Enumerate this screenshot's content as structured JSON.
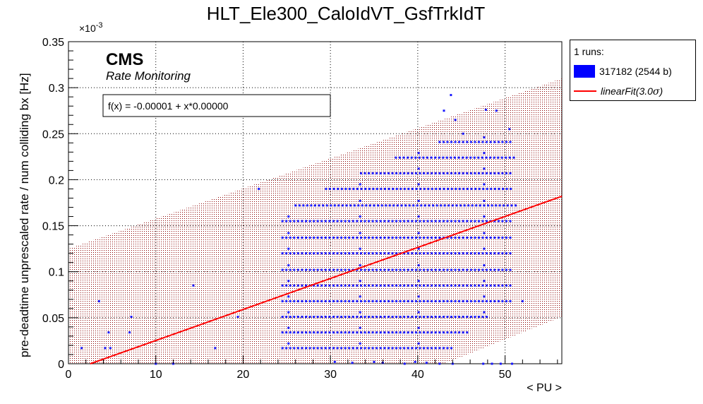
{
  "chart_data": {
    "type": "scatter",
    "title": "HLT_Ele300_CaloIdVT_GsfTrkIdT",
    "xlabel": "< PU >",
    "ylabel": "pre-deadtime unprescaled rate / num colliding bx [Hz]",
    "y_exponent_label": "×10",
    "y_exponent_power": "-3",
    "xlim": [
      0,
      56.5
    ],
    "ylim": [
      0,
      0.35
    ],
    "x_ticks": [
      0,
      10,
      20,
      30,
      40,
      50
    ],
    "x_tick_labels": [
      "0",
      "10",
      "20",
      "30",
      "40",
      "50"
    ],
    "y_ticks": [
      0,
      0.05,
      0.1,
      0.15,
      0.2,
      0.25,
      0.3,
      0.35
    ],
    "y_tick_labels": [
      "0",
      "0.05",
      "0.1",
      "0.15",
      "0.2",
      "0.25",
      "0.3",
      "0.35"
    ],
    "grid": true,
    "cms_label": "CMS",
    "cms_sublabel": "Rate Monitoring",
    "fit_formula": "f(x) = -0.00001 + x*0.00000",
    "fit_line": {
      "x": [
        2.5,
        56.5
      ],
      "y": [
        0.0,
        0.182
      ]
    },
    "band_upper": {
      "x": [
        0,
        56.5
      ],
      "y": [
        0.125,
        0.31
      ]
    },
    "band_lower": {
      "x": [
        43,
        56.5
      ],
      "y": [
        0.0,
        0.051
      ]
    },
    "legend": {
      "header": "1 runs:",
      "series_label": "317182 (2544 b)",
      "fit_label_prefix": "linearFit(3.0",
      "fit_label_sigma": "σ",
      "fit_label_suffix": ")"
    },
    "colors": {
      "points": "#1a1aff",
      "fit": "#ff0000",
      "band": "#8b0000"
    },
    "series": [
      {
        "name": "317182 (2544 b)",
        "points": [
          [
            1.5,
            0.017
          ],
          [
            3.5,
            0.068
          ],
          [
            4.2,
            0.017
          ],
          [
            4.6,
            0.034
          ],
          [
            4.8,
            0.017
          ],
          [
            7.2,
            0.051
          ],
          [
            7.0,
            0.034
          ],
          [
            14.3,
            0.085
          ],
          [
            16.8,
            0.017
          ],
          [
            19.4,
            0.051
          ],
          [
            21.8,
            0.19
          ],
          [
            10.0,
            0.0
          ],
          [
            12.0,
            0.0
          ],
          [
            43.8,
            0.292
          ],
          [
            43.0,
            0.275
          ],
          [
            44.3,
            0.265
          ],
          [
            45.2,
            0.25
          ],
          [
            47.8,
            0.276
          ],
          [
            49.0,
            0.275
          ],
          [
            50.5,
            0.255
          ],
          [
            51.2,
            0.172
          ],
          [
            52.0,
            0.068
          ],
          [
            42.5,
            0.0
          ],
          [
            44.0,
            0.0
          ],
          [
            47.5,
            0.0
          ],
          [
            48.5,
            0.0
          ],
          [
            49.5,
            0.0
          ],
          [
            50.8,
            0.0
          ],
          [
            30.5,
            0.002
          ],
          [
            32.5,
            0.001
          ],
          [
            35.0,
            0.002
          ],
          [
            36.0,
            0.001
          ],
          [
            38.5,
            0.0
          ],
          [
            39.7,
            0.002
          ],
          [
            41.0,
            0.001
          ]
        ],
        "rows": [
          {
            "y": 0.017,
            "x_start": 24.5,
            "x_end": 44
          },
          {
            "y": 0.034,
            "x_start": 24.5,
            "x_end": 46
          },
          {
            "y": 0.051,
            "x_start": 24.5,
            "x_end": 48
          },
          {
            "y": 0.068,
            "x_start": 24.5,
            "x_end": 51
          },
          {
            "y": 0.085,
            "x_start": 24.5,
            "x_end": 51
          },
          {
            "y": 0.102,
            "x_start": 24.5,
            "x_end": 51
          },
          {
            "y": 0.12,
            "x_start": 24.5,
            "x_end": 51
          },
          {
            "y": 0.137,
            "x_start": 24.5,
            "x_end": 51
          },
          {
            "y": 0.155,
            "x_start": 24.5,
            "x_end": 51
          },
          {
            "y": 0.172,
            "x_start": 26.0,
            "x_end": 51
          },
          {
            "y": 0.19,
            "x_start": 29.5,
            "x_end": 51
          },
          {
            "y": 0.207,
            "x_start": 33.5,
            "x_end": 51
          },
          {
            "y": 0.224,
            "x_start": 37.5,
            "x_end": 51
          },
          {
            "y": 0.241,
            "x_start": 42.5,
            "x_end": 51
          }
        ]
      }
    ]
  }
}
